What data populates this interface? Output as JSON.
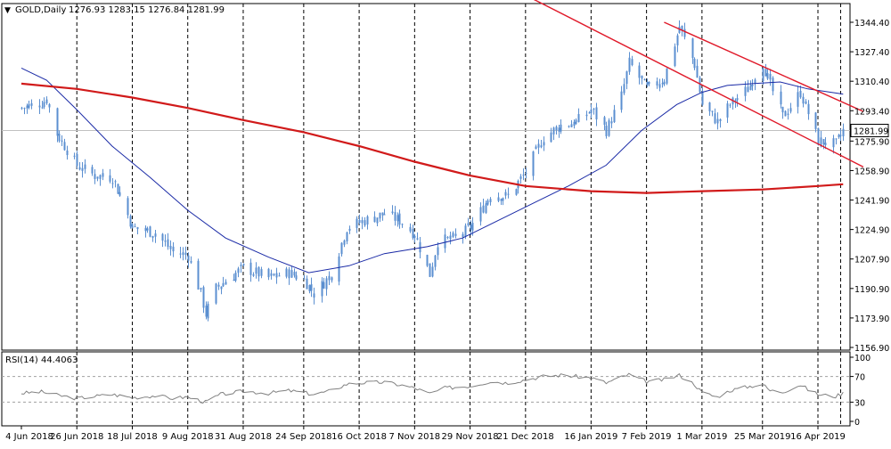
{
  "header": {
    "symbol": "GOLD,Daily",
    "ohlc": "1276.93 1283.15 1276.84 1281.99"
  },
  "colors": {
    "candle": "#5b8fd0",
    "ma_blue": "#1a2aa6",
    "ma_red": "#d11a1a",
    "channel": "#e01a2a",
    "grid": "#000000",
    "price_line": "#c0c0c0",
    "rsi_line": "#808080",
    "background": "#ffffff"
  },
  "chart_data": [
    {
      "type": "candlestick",
      "title": "GOLD,Daily",
      "ylim": [
        1150,
        1360
      ],
      "y_ticks": [
        "1344.40",
        "1327.40",
        "1310.40",
        "1293.40",
        "1275.90",
        "1258.90",
        "1241.90",
        "1224.90",
        "1207.90",
        "1190.90",
        "1173.90",
        "1156.90"
      ],
      "current_price": "1281.99",
      "x_ticks": [
        "4 Jun 2018",
        "26 Jun 2018",
        "18 Jul 2018",
        "9 Aug 2018",
        "31 Aug 2018",
        "24 Sep 2018",
        "16 Oct 2018",
        "7 Nov 2018",
        "29 Nov 2018",
        "21 Dec 2018",
        "16 Jan 2019",
        "7 Feb 2019",
        "1 Mar 2019",
        "25 Mar 2019",
        "16 Apr 2019"
      ],
      "grid": "vertical-dashed",
      "close_path": [
        [
          "2018-06-04",
          1295
        ],
        [
          "2018-06-12",
          1298
        ],
        [
          "2018-06-14",
          1300
        ],
        [
          "2018-06-18",
          1280
        ],
        [
          "2018-06-26",
          1262
        ],
        [
          "2018-07-03",
          1256
        ],
        [
          "2018-07-10",
          1255
        ],
        [
          "2018-07-18",
          1226
        ],
        [
          "2018-07-27",
          1223
        ],
        [
          "2018-08-03",
          1212
        ],
        [
          "2018-08-09",
          1210
        ],
        [
          "2018-08-14",
          1188
        ],
        [
          "2018-08-16",
          1176
        ],
        [
          "2018-08-20",
          1191
        ],
        [
          "2018-08-31",
          1203
        ],
        [
          "2018-09-10",
          1197
        ],
        [
          "2018-09-18",
          1200
        ],
        [
          "2018-09-24",
          1196
        ],
        [
          "2018-09-28",
          1188
        ],
        [
          "2018-10-05",
          1199
        ],
        [
          "2018-10-11",
          1226
        ],
        [
          "2018-10-16",
          1229
        ],
        [
          "2018-10-26",
          1234
        ],
        [
          "2018-11-01",
          1230
        ],
        [
          "2018-11-07",
          1222
        ],
        [
          "2018-11-13",
          1199
        ],
        [
          "2018-11-16",
          1218
        ],
        [
          "2018-11-23",
          1220
        ],
        [
          "2018-11-29",
          1226
        ],
        [
          "2018-12-07",
          1245
        ],
        [
          "2018-12-14",
          1244
        ],
        [
          "2018-12-21",
          1258
        ],
        [
          "2018-12-28",
          1278
        ],
        [
          "2019-01-04",
          1285
        ],
        [
          "2019-01-10",
          1287
        ],
        [
          "2019-01-16",
          1294
        ],
        [
          "2019-01-22",
          1282
        ],
        [
          "2019-01-28",
          1302
        ],
        [
          "2019-01-31",
          1321
        ],
        [
          "2019-02-07",
          1306
        ],
        [
          "2019-02-14",
          1312
        ],
        [
          "2019-02-20",
          1342
        ],
        [
          "2019-02-26",
          1320
        ],
        [
          "2019-03-01",
          1297
        ],
        [
          "2019-03-07",
          1287
        ],
        [
          "2019-03-12",
          1297
        ],
        [
          "2019-03-19",
          1306
        ],
        [
          "2019-03-25",
          1321
        ],
        [
          "2019-03-28",
          1308
        ],
        [
          "2019-04-02",
          1290
        ],
        [
          "2019-04-09",
          1304
        ],
        [
          "2019-04-12",
          1292
        ],
        [
          "2019-04-16",
          1276
        ],
        [
          "2019-04-23",
          1274
        ],
        [
          "2019-04-26",
          1282
        ]
      ],
      "series": [
        {
          "type": "line",
          "points": [
            [
              "2018-06-04",
              1318
            ],
            [
              "2018-06-14",
              1311
            ],
            [
              "2018-06-26",
              1294
            ],
            [
              "2018-07-10",
              1273
            ],
            [
              "2018-07-25",
              1255
            ],
            [
              "2018-08-09",
              1236
            ],
            [
              "2018-08-24",
              1220
            ],
            [
              "2018-09-10",
              1209
            ],
            [
              "2018-09-26",
              1200
            ],
            [
              "2018-10-12",
              1204
            ],
            [
              "2018-10-26",
              1211
            ],
            [
              "2018-11-12",
              1215
            ],
            [
              "2018-11-26",
              1220
            ],
            [
              "2018-12-10",
              1230
            ],
            [
              "2018-12-24",
              1240
            ],
            [
              "2019-01-07",
              1250
            ],
            [
              "2019-01-22",
              1262
            ],
            [
              "2019-02-05",
              1282
            ],
            [
              "2019-02-19",
              1297
            ],
            [
              "2019-03-01",
              1304
            ],
            [
              "2019-03-11",
              1308
            ],
            [
              "2019-03-21",
              1309
            ],
            [
              "2019-04-01",
              1310
            ],
            [
              "2019-04-12",
              1306
            ],
            [
              "2019-04-26",
              1303
            ]
          ]
        },
        {
          "type": "line",
          "points": [
            [
              "2018-06-04",
              1309
            ],
            [
              "2018-06-26",
              1306
            ],
            [
              "2018-07-18",
              1301
            ],
            [
              "2018-08-09",
              1295
            ],
            [
              "2018-08-31",
              1288
            ],
            [
              "2018-09-24",
              1281
            ],
            [
              "2018-10-16",
              1273
            ],
            [
              "2018-11-07",
              1264
            ],
            [
              "2018-11-29",
              1256
            ],
            [
              "2018-12-21",
              1250
            ],
            [
              "2019-01-16",
              1247
            ],
            [
              "2019-02-07",
              1246
            ],
            [
              "2019-03-01",
              1247
            ],
            [
              "2019-03-25",
              1248
            ],
            [
              "2019-04-16",
              1250
            ],
            [
              "2019-04-26",
              1251
            ]
          ]
        },
        {
          "type": "trendline",
          "points": [
            [
              "2018-12-21",
              1360
            ],
            [
              "2019-05-04",
              1261
            ]
          ]
        },
        {
          "type": "trendline",
          "points": [
            [
              "2019-02-14",
              1344.4
            ],
            [
              "2019-05-04",
              1293
            ]
          ]
        }
      ]
    },
    {
      "type": "line",
      "title": "RSI(14) 44.4063",
      "ylim": [
        0,
        100
      ],
      "y_ticks": [
        "100",
        "70",
        "30",
        "0"
      ],
      "levels": [
        70,
        30
      ],
      "values": [
        [
          "2018-06-04",
          44
        ],
        [
          "2018-06-12",
          46
        ],
        [
          "2018-06-18",
          41
        ],
        [
          "2018-06-26",
          36
        ],
        [
          "2018-07-03",
          39
        ],
        [
          "2018-07-10",
          42
        ],
        [
          "2018-07-18",
          37
        ],
        [
          "2018-07-27",
          40
        ],
        [
          "2018-08-03",
          36
        ],
        [
          "2018-08-09",
          38
        ],
        [
          "2018-08-16",
          30
        ],
        [
          "2018-08-22",
          42
        ],
        [
          "2018-08-31",
          47
        ],
        [
          "2018-09-10",
          44
        ],
        [
          "2018-09-18",
          48
        ],
        [
          "2018-09-24",
          45
        ],
        [
          "2018-09-28",
          42
        ],
        [
          "2018-10-05",
          48
        ],
        [
          "2018-10-11",
          58
        ],
        [
          "2018-10-16",
          60
        ],
        [
          "2018-10-26",
          61
        ],
        [
          "2018-11-01",
          57
        ],
        [
          "2018-11-07",
          52
        ],
        [
          "2018-11-13",
          43
        ],
        [
          "2018-11-19",
          52
        ],
        [
          "2018-11-29",
          55
        ],
        [
          "2018-12-07",
          62
        ],
        [
          "2018-12-14",
          60
        ],
        [
          "2018-12-21",
          65
        ],
        [
          "2018-12-28",
          70
        ],
        [
          "2019-01-04",
          72
        ],
        [
          "2019-01-10",
          70
        ],
        [
          "2019-01-16",
          68
        ],
        [
          "2019-01-22",
          60
        ],
        [
          "2019-01-31",
          73
        ],
        [
          "2019-02-07",
          62
        ],
        [
          "2019-02-14",
          65
        ],
        [
          "2019-02-20",
          72
        ],
        [
          "2019-02-26",
          58
        ],
        [
          "2019-03-01",
          45
        ],
        [
          "2019-03-07",
          38
        ],
        [
          "2019-03-12",
          48
        ],
        [
          "2019-03-19",
          54
        ],
        [
          "2019-03-25",
          58
        ],
        [
          "2019-03-28",
          48
        ],
        [
          "2019-04-02",
          46
        ],
        [
          "2019-04-09",
          57
        ],
        [
          "2019-04-12",
          50
        ],
        [
          "2019-04-16",
          42
        ],
        [
          "2019-04-23",
          39
        ],
        [
          "2019-04-26",
          44
        ]
      ]
    }
  ]
}
